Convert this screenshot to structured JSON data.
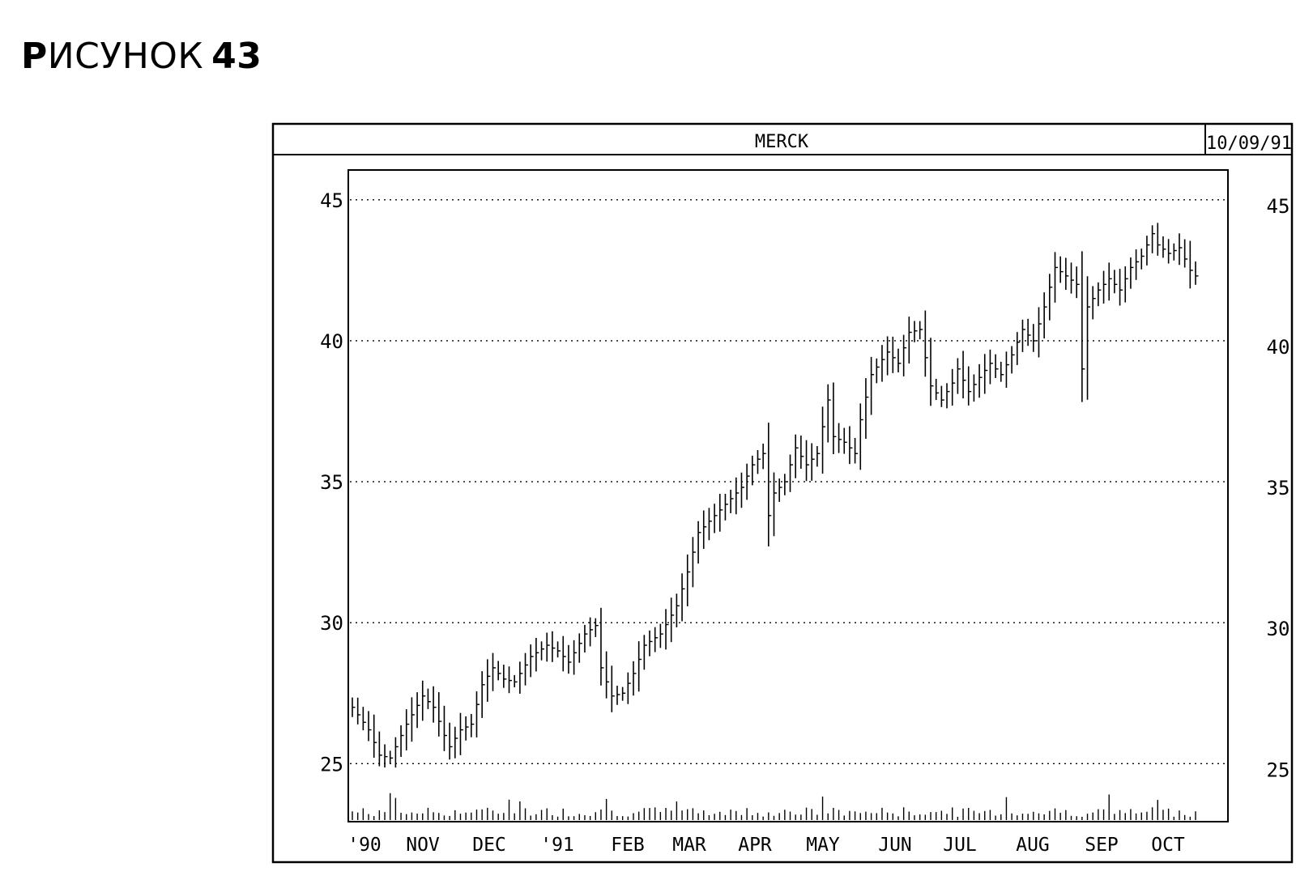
{
  "figure": {
    "label_cap": "Р",
    "label_rest": "ИСУНОК",
    "label_num": "43"
  },
  "chart_data": {
    "type": "bar",
    "subtype": "ohlc-price-bars-with-volume",
    "title": "MERCK",
    "date": "10/09/91",
    "ylim": [
      23,
      46
    ],
    "yticks": [
      25,
      30,
      35,
      40,
      45
    ],
    "grid": "horizontal-dotted",
    "x_labels": [
      "'90",
      "NOV",
      "DEC",
      "'91",
      "FEB",
      "MAR",
      "APR",
      "MAY",
      "JUN",
      "JUL",
      "AUG",
      "SEP",
      "OCT"
    ],
    "price_path": [
      [
        0,
        27.0
      ],
      [
        3,
        26.2
      ],
      [
        5,
        25.3
      ],
      [
        7,
        25.2
      ],
      [
        10,
        26.4
      ],
      [
        13,
        27.4
      ],
      [
        15,
        27.0
      ],
      [
        17,
        26.0
      ],
      [
        18,
        25.6
      ],
      [
        20,
        26.2
      ],
      [
        22,
        26.4
      ],
      [
        24,
        27.8
      ],
      [
        26,
        28.4
      ],
      [
        28,
        28.0
      ],
      [
        30,
        27.9
      ],
      [
        33,
        28.8
      ],
      [
        36,
        29.2
      ],
      [
        38,
        29.0
      ],
      [
        40,
        28.6
      ],
      [
        43,
        29.6
      ],
      [
        45,
        29.9
      ],
      [
        46,
        28.4
      ],
      [
        48,
        27.4
      ],
      [
        50,
        27.5
      ],
      [
        52,
        28.2
      ],
      [
        54,
        29.2
      ],
      [
        57,
        29.6
      ],
      [
        60,
        30.6
      ],
      [
        62,
        31.8
      ],
      [
        64,
        33.2
      ],
      [
        66,
        33.6
      ],
      [
        69,
        34.2
      ],
      [
        72,
        34.8
      ],
      [
        74,
        35.6
      ],
      [
        76,
        36.0
      ],
      [
        77,
        33.8
      ],
      [
        78,
        34.6
      ],
      [
        80,
        35.0
      ],
      [
        82,
        36.2
      ],
      [
        84,
        35.6
      ],
      [
        86,
        36.0
      ],
      [
        88,
        37.9
      ],
      [
        89,
        36.6
      ],
      [
        91,
        36.4
      ],
      [
        93,
        36.0
      ],
      [
        94,
        37.2
      ],
      [
        96,
        38.8
      ],
      [
        99,
        39.6
      ],
      [
        101,
        39.2
      ],
      [
        103,
        40.3
      ],
      [
        105,
        40.4
      ],
      [
        107,
        38.4
      ],
      [
        109,
        37.9
      ],
      [
        111,
        38.5
      ],
      [
        112,
        39.0
      ],
      [
        114,
        38.2
      ],
      [
        116,
        38.7
      ],
      [
        118,
        39.2
      ],
      [
        120,
        38.8
      ],
      [
        122,
        39.5
      ],
      [
        124,
        40.4
      ],
      [
        126,
        40.0
      ],
      [
        128,
        41.2
      ],
      [
        130,
        42.6
      ],
      [
        132,
        42.3
      ],
      [
        134,
        42.0
      ],
      [
        135,
        39.0
      ],
      [
        136,
        41.2
      ],
      [
        138,
        41.8
      ],
      [
        140,
        42.2
      ],
      [
        142,
        41.8
      ],
      [
        144,
        42.6
      ],
      [
        146,
        43.0
      ],
      [
        148,
        43.8
      ],
      [
        149,
        43.4
      ],
      [
        151,
        43.1
      ],
      [
        153,
        43.3
      ],
      [
        155,
        42.5
      ],
      [
        156,
        42.3
      ]
    ]
  }
}
